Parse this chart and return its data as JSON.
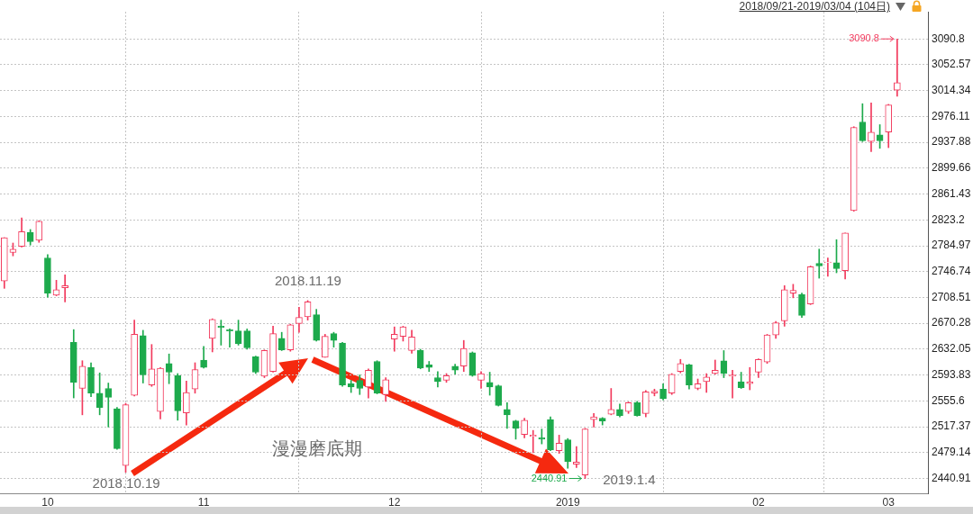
{
  "chart_data": {
    "type": "candlestick",
    "title": "2018/09/21-2019/03/04 (104日)",
    "categories": [
      null,
      null,
      null,
      null,
      null,
      "10",
      null,
      null,
      null,
      null,
      null,
      null,
      null,
      null,
      null,
      null,
      null,
      null,
      null,
      null,
      null,
      null,
      null,
      "11",
      null,
      null,
      null,
      null,
      null,
      null,
      null,
      null,
      null,
      null,
      null,
      null,
      null,
      null,
      null,
      null,
      null,
      null,
      null,
      null,
      null,
      "12",
      null,
      null,
      null,
      null,
      null,
      null,
      null,
      null,
      null,
      null,
      null,
      null,
      null,
      null,
      null,
      null,
      null,
      null,
      null,
      "2019",
      null,
      null,
      null,
      null,
      null,
      null,
      null,
      null,
      null,
      null,
      null,
      null,
      null,
      null,
      null,
      null,
      null,
      null,
      null,
      null,
      null,
      "02",
      null,
      null,
      null,
      null,
      null,
      null,
      null,
      null,
      null,
      null,
      null,
      null,
      null,
      null,
      "03",
      null
    ],
    "ohlc": [
      [
        2733,
        2797,
        2722,
        2797
      ],
      [
        2775,
        2789,
        2770,
        2780
      ],
      [
        2784,
        2826,
        2783,
        2806
      ],
      [
        2805,
        2809,
        2786,
        2791
      ],
      [
        2793,
        2822,
        2790,
        2821
      ],
      [
        2767,
        2772,
        2709,
        2715
      ],
      [
        2712,
        2734,
        2711,
        2720
      ],
      [
        2723,
        2742,
        2702,
        2726
      ],
      [
        2642,
        2661,
        2560,
        2583
      ],
      [
        2574,
        2615,
        2535,
        2607
      ],
      [
        2605,
        2612,
        2562,
        2567
      ],
      [
        2567,
        2597,
        2535,
        2546
      ],
      [
        2574,
        2582,
        2517,
        2561
      ],
      [
        2544,
        2546,
        2484,
        2485
      ],
      [
        2460,
        2552,
        2450,
        2550
      ],
      [
        2564,
        2675,
        2563,
        2654
      ],
      [
        2652,
        2660,
        2582,
        2594
      ],
      [
        2579,
        2639,
        2577,
        2603
      ],
      [
        2540,
        2605,
        2529,
        2604
      ],
      [
        2611,
        2625,
        2581,
        2598
      ],
      [
        2593,
        2596,
        2527,
        2541
      ],
      [
        2538,
        2585,
        2520,
        2568
      ],
      [
        2573,
        2612,
        2567,
        2602
      ],
      [
        2616,
        2636,
        2604,
        2605
      ],
      [
        2648,
        2677,
        2628,
        2676
      ],
      [
        2666,
        2675,
        2638,
        2664
      ],
      [
        2661,
        2662,
        2635,
        2659
      ],
      [
        2659,
        2675,
        2638,
        2640
      ],
      [
        2659,
        2662,
        2632,
        2634
      ],
      [
        2621,
        2622,
        2596,
        2598
      ],
      [
        2592,
        2631,
        2590,
        2630
      ],
      [
        2599,
        2666,
        2598,
        2655
      ],
      [
        2648,
        2657,
        2630,
        2631
      ],
      [
        2631,
        2669,
        2629,
        2668
      ],
      [
        2670,
        2694,
        2657,
        2679
      ],
      [
        2680,
        2704,
        2675,
        2702
      ],
      [
        2683,
        2691,
        2644,
        2645
      ],
      [
        2620,
        2654,
        2620,
        2651
      ],
      [
        2655,
        2657,
        2635,
        2645
      ],
      [
        2641,
        2642,
        2577,
        2579
      ],
      [
        2581,
        2586,
        2568,
        2576
      ],
      [
        2586,
        2594,
        2565,
        2574
      ],
      [
        2576,
        2603,
        2560,
        2601
      ],
      [
        2614,
        2615,
        2566,
        2567
      ],
      [
        2565,
        2590,
        2555,
        2587
      ],
      [
        2647,
        2665,
        2629,
        2654
      ],
      [
        2651,
        2666,
        2644,
        2665
      ],
      [
        2630,
        2660,
        2626,
        2650
      ],
      [
        2630,
        2632,
        2603,
        2604
      ],
      [
        2609,
        2614,
        2599,
        2605
      ],
      [
        2590,
        2599,
        2576,
        2584
      ],
      [
        2586,
        2596,
        2583,
        2593
      ],
      [
        2607,
        2610,
        2595,
        2601
      ],
      [
        2607,
        2645,
        2599,
        2633
      ],
      [
        2627,
        2628,
        2592,
        2593
      ],
      [
        2586,
        2599,
        2574,
        2596
      ],
      [
        2583,
        2598,
        2564,
        2576
      ],
      [
        2578,
        2579,
        2548,
        2549
      ],
      [
        2543,
        2553,
        2515,
        2535
      ],
      [
        2526,
        2527,
        2499,
        2515
      ],
      [
        2506,
        2530,
        2501,
        2527
      ],
      [
        2503,
        2512,
        2479,
        2505
      ],
      [
        2501,
        2514,
        2492,
        2499
      ],
      [
        2528,
        2532,
        2482,
        2483
      ],
      [
        2482,
        2505,
        2478,
        2493
      ],
      [
        2498,
        2500,
        2456,
        2466
      ],
      [
        2462,
        2488,
        2457,
        2465
      ],
      [
        2446,
        2515,
        2440.91,
        2514
      ],
      [
        2528,
        2537,
        2517,
        2532
      ],
      [
        2530,
        2531,
        2520,
        2526
      ],
      [
        2536,
        2574,
        2535,
        2543
      ],
      [
        2543,
        2551,
        2532,
        2534
      ],
      [
        2540,
        2554,
        2537,
        2553
      ],
      [
        2553,
        2555,
        2533,
        2534
      ],
      [
        2537,
        2571,
        2532,
        2569
      ],
      [
        2567,
        2573,
        2563,
        2570
      ],
      [
        2573,
        2581,
        2557,
        2559
      ],
      [
        2567,
        2596,
        2565,
        2595
      ],
      [
        2599,
        2617,
        2597,
        2611
      ],
      [
        2609,
        2610,
        2573,
        2579
      ],
      [
        2574,
        2588,
        2572,
        2581
      ],
      [
        2584,
        2596,
        2568,
        2591
      ],
      [
        2596,
        2616,
        2595,
        2601
      ],
      [
        2615,
        2630,
        2590,
        2596
      ],
      [
        2592,
        2601,
        2560,
        2594
      ],
      [
        2584,
        2598,
        2574,
        2575
      ],
      [
        2581,
        2605,
        2572,
        2584
      ],
      [
        2598,
        2618,
        2590,
        2617
      ],
      [
        2613,
        2654,
        2611,
        2653
      ],
      [
        2653,
        2673,
        2648,
        2671
      ],
      [
        2674,
        2726,
        2666,
        2720
      ],
      [
        2715,
        2728,
        2708,
        2719
      ],
      [
        2713,
        2715,
        2679,
        2682
      ],
      [
        2699,
        2755,
        2698,
        2754
      ],
      [
        2759,
        2780,
        2737,
        2755
      ],
      [
        2760,
        2767,
        2740,
        2761
      ],
      [
        2760,
        2794,
        2745,
        2751
      ],
      [
        2748,
        2804,
        2736,
        2804
      ],
      [
        2837,
        2961,
        2836,
        2960
      ],
      [
        2968,
        2995,
        2939,
        2940
      ],
      [
        2939,
        2996,
        2924,
        2953
      ],
      [
        2949,
        2964,
        2929,
        2940
      ],
      [
        2953,
        2994,
        2930,
        2993
      ],
      [
        3015,
        3090.8,
        3006,
        3026
      ]
    ],
    "colors": [
      "#f23a5d",
      "#f23a5d",
      "#f23a5d",
      "#1daa4c",
      "#f23a5d",
      "#1daa4c",
      "#f23a5d",
      "#f23a5d",
      "#1daa4c",
      "#f23a5d",
      "#1daa4c",
      "#1daa4c",
      "#1daa4c",
      "#1daa4c",
      "#f23a5d",
      "#f23a5d",
      "#1daa4c",
      "#f23a5d",
      "#f23a5d",
      "#1daa4c",
      "#1daa4c",
      "#f23a5d",
      "#f23a5d",
      "#1daa4c",
      "#f23a5d",
      "#1daa4c",
      "#1daa4c",
      "#1daa4c",
      "#1daa4c",
      "#1daa4c",
      "#f23a5d",
      "#f23a5d",
      "#1daa4c",
      "#f23a5d",
      "#f23a5d",
      "#f23a5d",
      "#1daa4c",
      "#f23a5d",
      "#1daa4c",
      "#1daa4c",
      "#1daa4c",
      "#1daa4c",
      "#f23a5d",
      "#1daa4c",
      "#f23a5d",
      "#f23a5d",
      "#f23a5d",
      "#f23a5d",
      "#1daa4c",
      "#1daa4c",
      "#1daa4c",
      "#f23a5d",
      "#1daa4c",
      "#f23a5d",
      "#1daa4c",
      "#f23a5d",
      "#1daa4c",
      "#1daa4c",
      "#1daa4c",
      "#1daa4c",
      "#f23a5d",
      "#f23a5d",
      "#1daa4c",
      "#1daa4c",
      "#f23a5d",
      "#1daa4c",
      "#f23a5d",
      "#f23a5d",
      "#f23a5d",
      "#1daa4c",
      "#f23a5d",
      "#1daa4c",
      "#f23a5d",
      "#1daa4c",
      "#f23a5d",
      "#f23a5d",
      "#1daa4c",
      "#f23a5d",
      "#f23a5d",
      "#1daa4c",
      "#f23a5d",
      "#f23a5d",
      "#f23a5d",
      "#1daa4c",
      "#f23a5d",
      "#1daa4c",
      "#f23a5d",
      "#f23a5d",
      "#f23a5d",
      "#f23a5d",
      "#f23a5d",
      "#f23a5d",
      "#1daa4c",
      "#f23a5d",
      "#1daa4c",
      "#f23a5d",
      "#1daa4c",
      "#f23a5d",
      "#f23a5d",
      "#1daa4c",
      "#f23a5d",
      "#1daa4c",
      "#f23a5d",
      "#f23a5d"
    ],
    "ylim": [
      2419,
      3131
    ],
    "yticks": [
      2440.91,
      2479.14,
      2517.37,
      2555.6,
      2593.83,
      2632.05,
      2670.28,
      2708.51,
      2746.74,
      2784.97,
      2823.2,
      2861.43,
      2899.66,
      2937.88,
      2976.11,
      3014.34,
      3052.57,
      3090.8
    ],
    "grid": true,
    "annotations": [
      "2018.11.19",
      "漫漫磨底期",
      "2019.1.4",
      "2018.10.19",
      "3090.8",
      "2440.91"
    ]
  }
}
